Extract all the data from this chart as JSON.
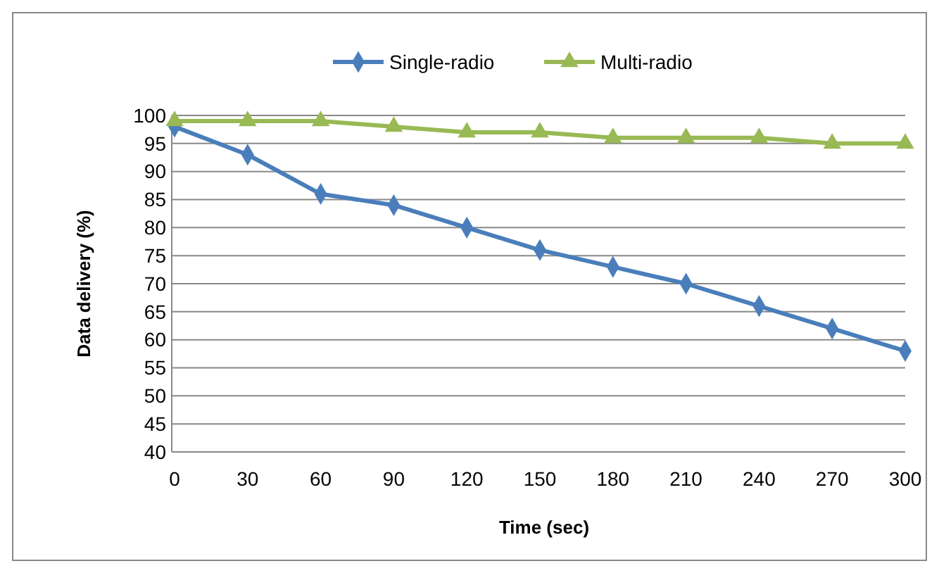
{
  "chart_data": {
    "type": "line",
    "xlabel": "Time (sec)",
    "ylabel": "Data delivery (%)",
    "x": [
      0,
      30,
      60,
      90,
      120,
      150,
      180,
      210,
      240,
      270,
      300
    ],
    "xlim": [
      0,
      300
    ],
    "xticks": [
      0,
      30,
      60,
      90,
      120,
      150,
      180,
      210,
      240,
      270,
      300
    ],
    "ylim": [
      40,
      100
    ],
    "yticks": [
      40,
      45,
      50,
      55,
      60,
      65,
      70,
      75,
      80,
      85,
      90,
      95,
      100
    ],
    "series": [
      {
        "name": "Single-radio",
        "color": "#4a7ebb",
        "marker": "diamond",
        "values": [
          98,
          93,
          86,
          84,
          80,
          76,
          73,
          70,
          66,
          62,
          58
        ]
      },
      {
        "name": "Multi-radio",
        "color": "#98b954",
        "marker": "triangle",
        "values": [
          99,
          99,
          99,
          98,
          97,
          97,
          96,
          96,
          96,
          95,
          95
        ]
      }
    ],
    "grid": "y",
    "legend": "top"
  }
}
